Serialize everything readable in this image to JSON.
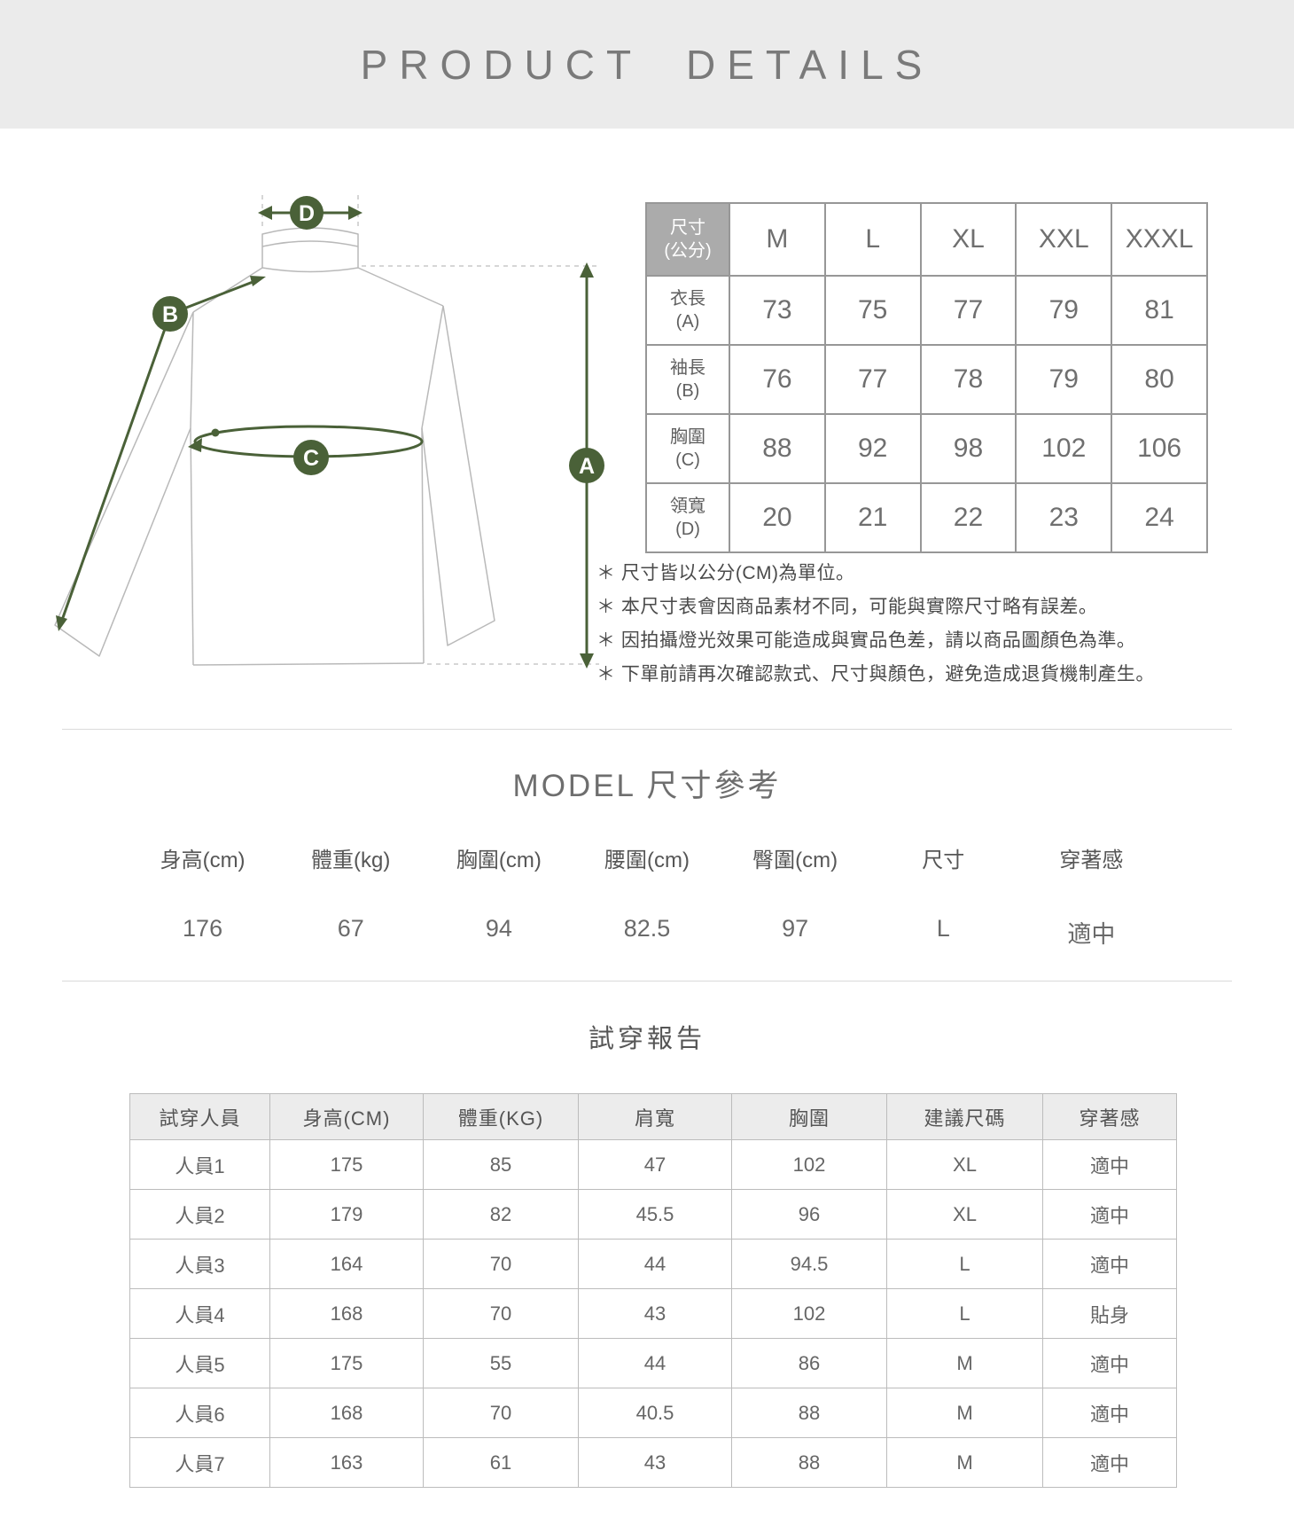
{
  "header": {
    "title": "PRODUCT DETAILS"
  },
  "colors": {
    "accent_green": "#4a6138",
    "header_band_gray": "#ebebeb",
    "size_table_head_gray": "#ababab",
    "outline_gray": "#b9b9b9"
  },
  "diagram": {
    "markers": {
      "a": "A",
      "b": "B",
      "c": "C",
      "d": "D"
    }
  },
  "size_table": {
    "corner_line1": "尺寸",
    "corner_line2": "(公分)",
    "columns": [
      "M",
      "L",
      "XL",
      "XXL",
      "XXXL"
    ],
    "rows": [
      {
        "label": "衣長",
        "code": "(A)",
        "values": [
          "73",
          "75",
          "77",
          "79",
          "81"
        ]
      },
      {
        "label": "袖長",
        "code": "(B)",
        "values": [
          "76",
          "77",
          "78",
          "79",
          "80"
        ]
      },
      {
        "label": "胸圍",
        "code": "(C)",
        "values": [
          "88",
          "92",
          "98",
          "102",
          "106"
        ]
      },
      {
        "label": "領寬",
        "code": "(D)",
        "values": [
          "20",
          "21",
          "22",
          "23",
          "24"
        ]
      }
    ]
  },
  "notes": [
    "＊ 尺寸皆以公分(CM)為單位。",
    "＊ 本尺寸表會因商品素材不同，可能與實際尺寸略有誤差。",
    "＊ 因拍攝燈光效果可能造成與實品色差，請以商品圖顏色為準。",
    "＊ 下單前請再次確認款式、尺寸與顏色，避免造成退貨機制產生。"
  ],
  "model_section": {
    "title": "MODEL 尺寸參考",
    "headers": [
      "身高(cm)",
      "體重(kg)",
      "胸圍(cm)",
      "腰圍(cm)",
      "臀圍(cm)",
      "尺寸",
      "穿著感"
    ],
    "values": [
      "176",
      "67",
      "94",
      "82.5",
      "97",
      "L",
      "適中"
    ]
  },
  "fitting_report": {
    "title": "試穿報告",
    "headers": [
      "試穿人員",
      "身高(CM)",
      "體重(KG)",
      "肩寬",
      "胸圍",
      "建議尺碼",
      "穿著感"
    ],
    "rows": [
      [
        "人員1",
        "175",
        "85",
        "47",
        "102",
        "XL",
        "適中"
      ],
      [
        "人員2",
        "179",
        "82",
        "45.5",
        "96",
        "XL",
        "適中"
      ],
      [
        "人員3",
        "164",
        "70",
        "44",
        "94.5",
        "L",
        "適中"
      ],
      [
        "人員4",
        "168",
        "70",
        "43",
        "102",
        "L",
        "貼身"
      ],
      [
        "人員5",
        "175",
        "55",
        "44",
        "86",
        "M",
        "適中"
      ],
      [
        "人員6",
        "168",
        "70",
        "40.5",
        "88",
        "M",
        "適中"
      ],
      [
        "人員7",
        "163",
        "61",
        "43",
        "88",
        "M",
        "適中"
      ]
    ]
  }
}
